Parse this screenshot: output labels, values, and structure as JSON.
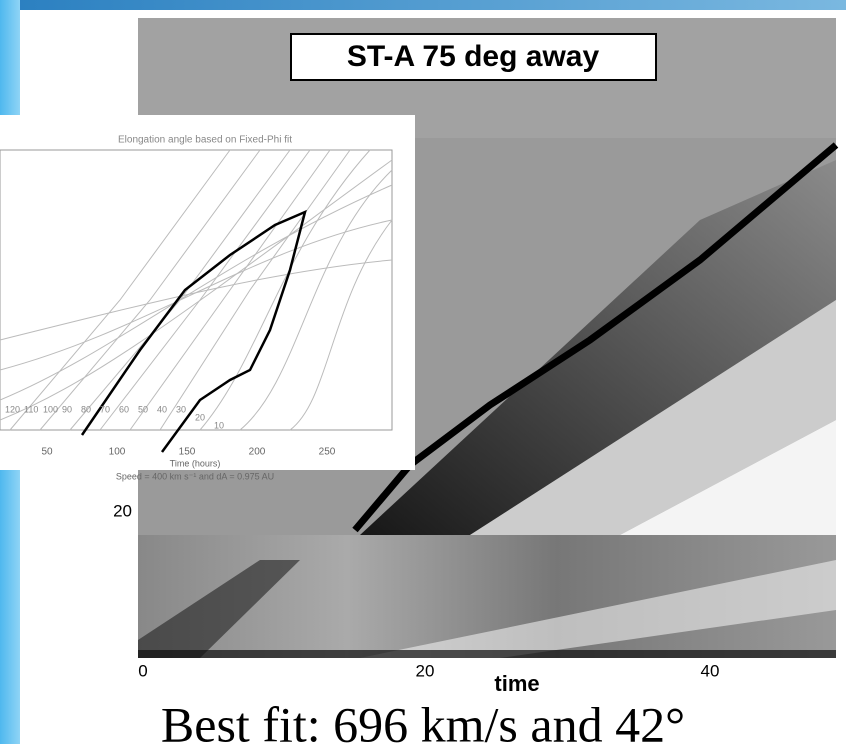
{
  "main_panel": {
    "label": "ST-A 75 deg away",
    "x_axis_title": "time",
    "x_ticks": [
      "0",
      "20",
      "40"
    ],
    "y_ticks": [
      "20"
    ]
  },
  "inset": {
    "title": "Elongation angle based on Fixed-Phi fit",
    "x_ticks": [
      "50",
      "100",
      "150",
      "200",
      "250"
    ],
    "x_axis_title": "Time (hours)",
    "footer": "Speed = 400 km s⁻¹ and dA = 0.975 AU",
    "curve_labels": [
      "120",
      "110",
      "100",
      "90",
      "80",
      "70",
      "60",
      "50",
      "40",
      "30",
      "20",
      "10"
    ]
  },
  "caption": "Best fit: 696 km/s and 42°"
}
